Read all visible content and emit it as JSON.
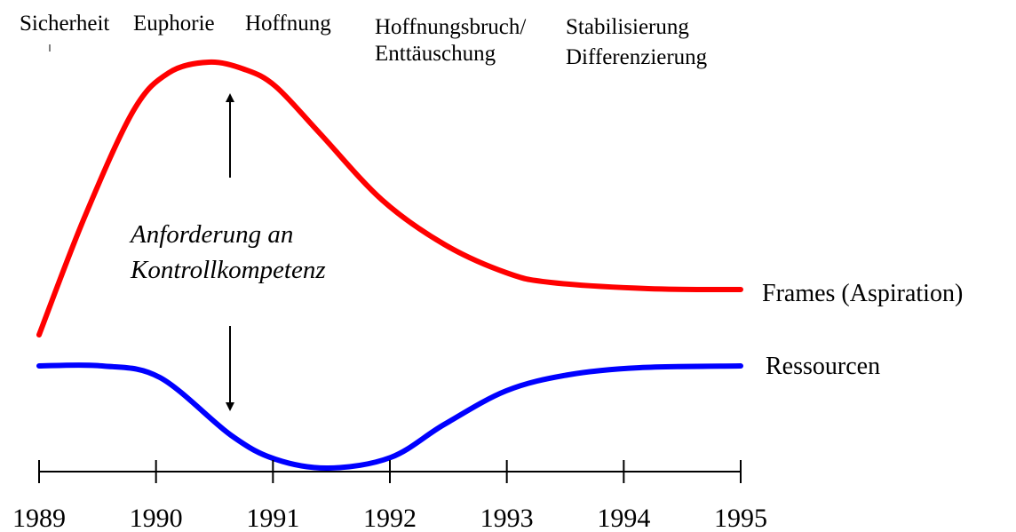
{
  "phases": [
    {
      "lines": [
        "Sicherheit"
      ]
    },
    {
      "lines": [
        "Euphorie"
      ]
    },
    {
      "lines": [
        "Hoffnung"
      ]
    },
    {
      "lines": [
        "Hoffnungsbruch/",
        "Enttäuschung"
      ]
    },
    {
      "lines": [
        "Stabilisierung",
        "Differenzierung"
      ]
    }
  ],
  "annotation": {
    "lines": [
      "Anforderung an",
      "Kontrollkompetenz"
    ]
  },
  "curves": [
    {
      "label": "Frames (Aspiration)"
    },
    {
      "label": "Ressourcen"
    }
  ],
  "axis": {
    "years": [
      "1989",
      "1990",
      "1991",
      "1992",
      "1993",
      "1994",
      "1995"
    ]
  }
}
